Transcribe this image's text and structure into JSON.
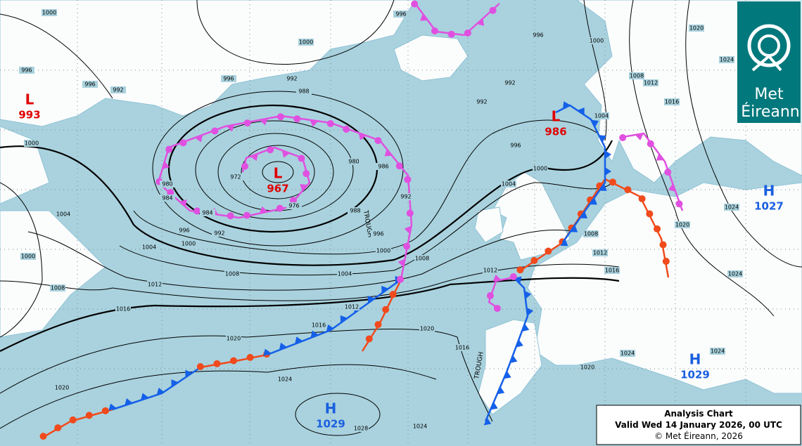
{
  "pressure_centers": [
    {
      "symbol": "L",
      "value": 993
    },
    {
      "symbol": "L",
      "value": 967
    },
    {
      "symbol": "L",
      "value": 986
    },
    {
      "symbol": "H",
      "value": 1027
    },
    {
      "symbol": "H",
      "value": 1029
    },
    {
      "symbol": "H",
      "value": 1029
    }
  ],
  "isobar_labels": [
    1000,
    1000,
    996,
    996,
    992,
    988,
    996,
    992,
    1000,
    980,
    972,
    984,
    984,
    996,
    992,
    1000,
    1004,
    1008,
    1012,
    1016,
    1020,
    1016,
    1012,
    1004,
    1000,
    1008,
    980,
    988,
    996,
    992,
    986,
    976,
    996,
    996,
    992,
    992,
    996,
    1000,
    1004,
    1000,
    1004,
    1008,
    1012,
    1016,
    1020,
    1024,
    1024,
    1020,
    1024,
    1016,
    1012,
    1008,
    1012,
    1016,
    1020,
    1024,
    1028,
    1024,
    1020,
    1020,
    1024,
    1024,
    1004,
    1000,
    1008
  ],
  "front_labels": [
    "TROUGH",
    "TROUGH"
  ],
  "caption": {
    "title": "Analysis Chart",
    "valid": "Valid Wed 14 January 2026, 00 UTC",
    "copyright": "© Met Éireann, 2026"
  },
  "logo": {
    "line1": "Met",
    "line2": "Éireann"
  }
}
